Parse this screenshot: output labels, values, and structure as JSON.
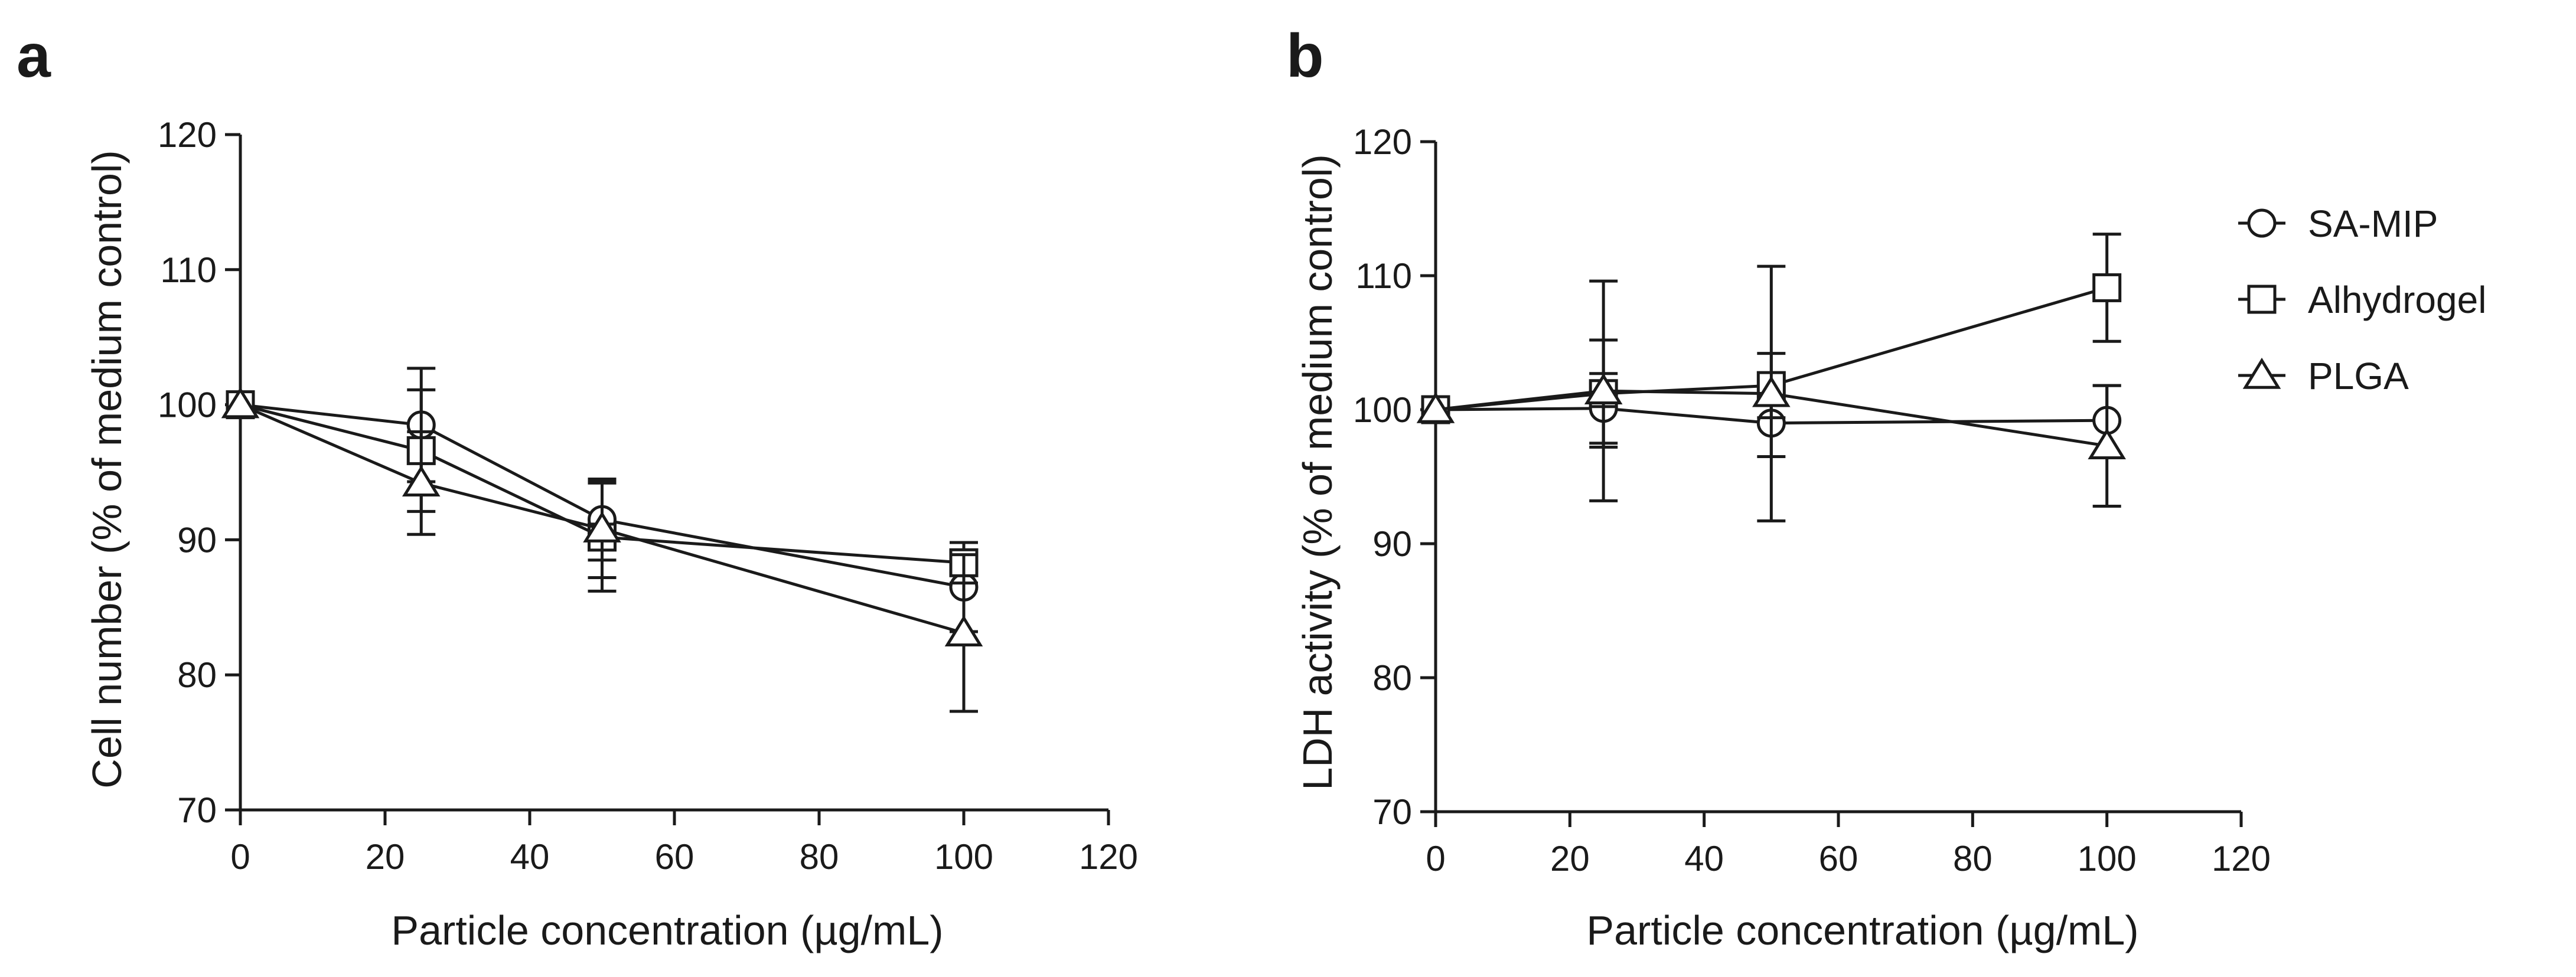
{
  "chart_data": [
    {
      "panel": "a",
      "type": "line",
      "title": "",
      "xlabel": "Particle concentration (µg/mL)",
      "ylabel": "Cell number (% of medium control)",
      "xlim": [
        0,
        120
      ],
      "ylim": [
        70,
        120
      ],
      "xticks": [
        0,
        20,
        40,
        60,
        80,
        100,
        120
      ],
      "yticks": [
        70,
        80,
        90,
        100,
        110,
        120
      ],
      "grid": false,
      "legend": false,
      "x": [
        0,
        25,
        50,
        100
      ],
      "series": [
        {
          "name": "SA-MIP",
          "marker": "circle",
          "values": [
            100,
            98.5,
            91.5,
            86.5
          ],
          "errors": [
            0,
            4.2,
            3.0,
            3.3
          ]
        },
        {
          "name": "Alhydrogel",
          "marker": "square",
          "values": [
            100,
            96.6,
            90.2,
            88.3
          ],
          "errors": [
            0,
            4.5,
            4.0,
            1.5
          ]
        },
        {
          "name": "PLGA",
          "marker": "triangle",
          "values": [
            100,
            94.2,
            90.8,
            83.1
          ],
          "errors": [
            0,
            3.8,
            3.6,
            5.8
          ]
        }
      ]
    },
    {
      "panel": "b",
      "type": "line",
      "title": "",
      "xlabel": "Particle concentration (µg/mL)",
      "ylabel": "LDH activity (% of medium control)",
      "xlim": [
        0,
        120
      ],
      "ylim": [
        70,
        120
      ],
      "xticks": [
        0,
        20,
        40,
        60,
        80,
        100,
        120
      ],
      "yticks": [
        70,
        80,
        90,
        100,
        110,
        120
      ],
      "grid": false,
      "legend": "top-right",
      "x": [
        0,
        25,
        50,
        100
      ],
      "series": [
        {
          "name": "SA-MIP",
          "marker": "circle",
          "values": [
            100,
            100.1,
            99.0,
            99.2
          ],
          "errors": [
            0,
            2.6,
            2.5,
            2.6
          ]
        },
        {
          "name": "Alhydrogel",
          "marker": "square",
          "values": [
            100,
            101.2,
            101.8,
            109.1
          ],
          "errors": [
            0,
            4.0,
            2.4,
            4.0
          ]
        },
        {
          "name": "PLGA",
          "marker": "triangle",
          "values": [
            100,
            101.4,
            101.2,
            97.3
          ],
          "errors": [
            0,
            8.2,
            9.5,
            4.5
          ]
        }
      ]
    }
  ]
}
